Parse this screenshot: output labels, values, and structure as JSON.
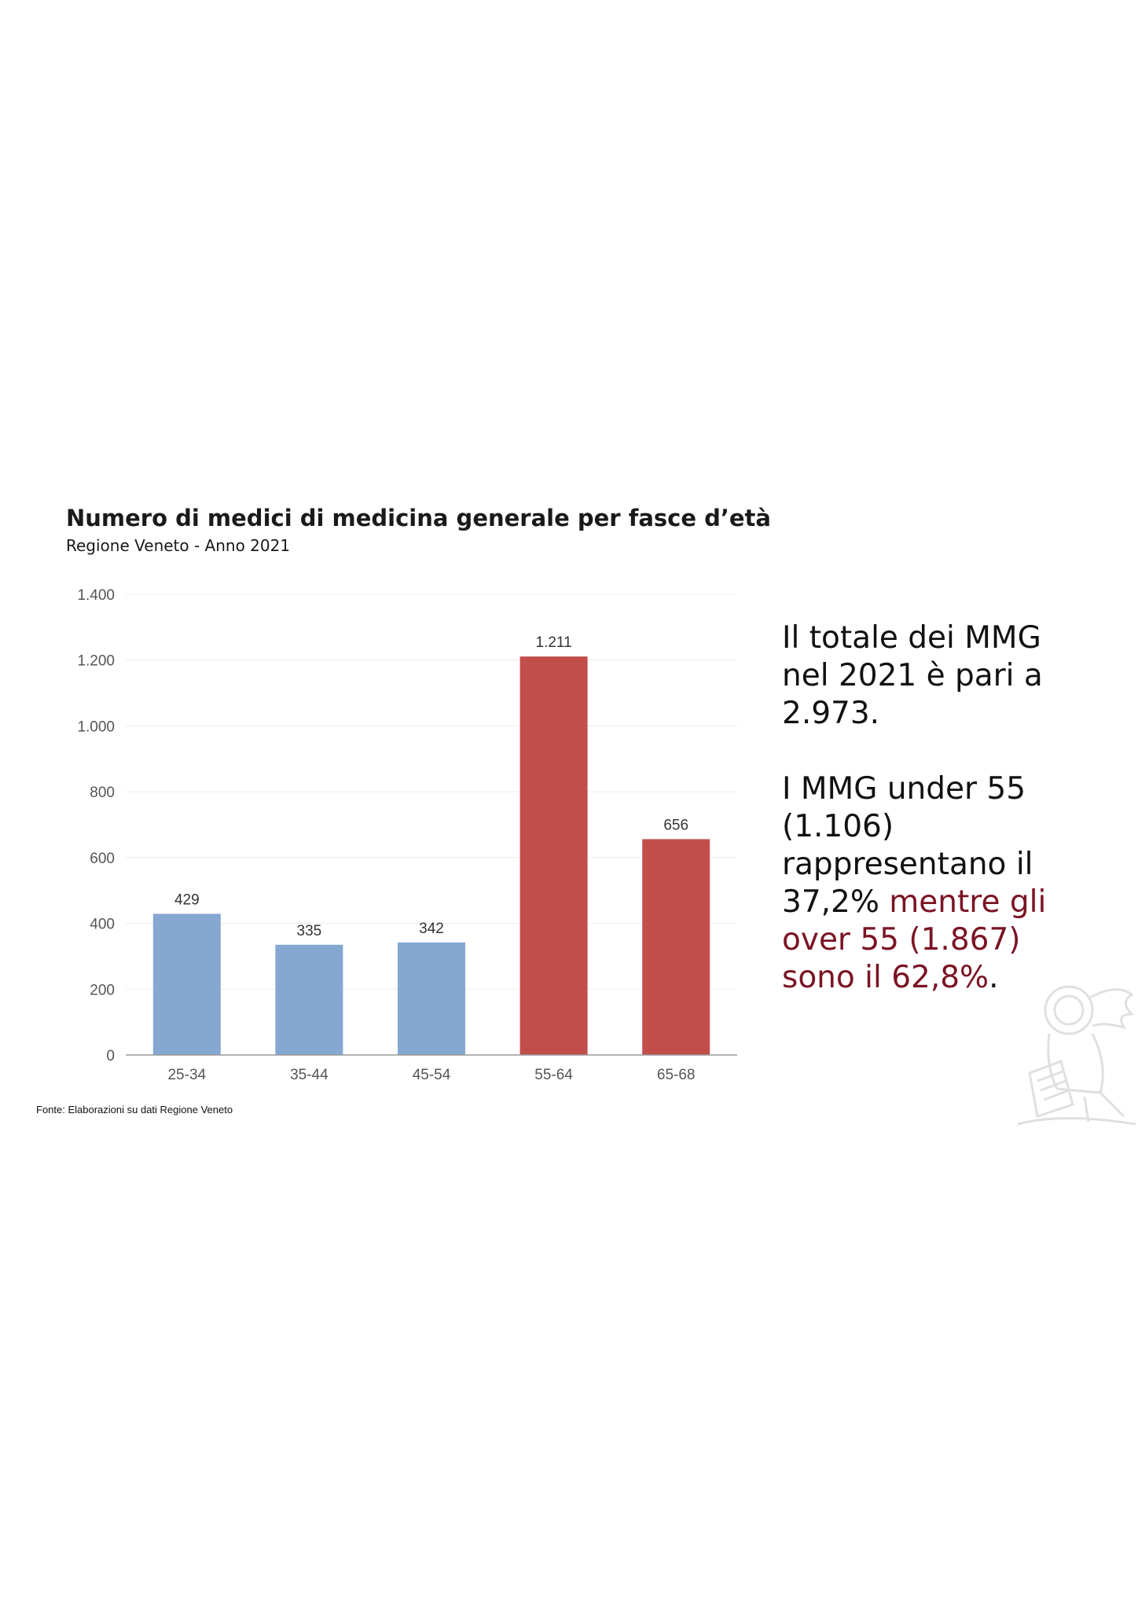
{
  "chart_data": {
    "type": "bar",
    "title": "Numero di medici di medicina generale per fasce d’età",
    "subtitle": "Regione Veneto - Anno 2021",
    "categories": [
      "25-34",
      "35-44",
      "45-54",
      "55-64",
      "65-68"
    ],
    "values": [
      429,
      335,
      342,
      1211,
      656
    ],
    "value_labels": [
      "429",
      "335",
      "342",
      "1.211",
      "656"
    ],
    "bar_colors": [
      "#85a7d2",
      "#85a7d2",
      "#85a7d2",
      "#c24e4c",
      "#c24e4c"
    ],
    "ylim": [
      0,
      1400
    ],
    "y_ticks": [
      0,
      200,
      400,
      600,
      800,
      1000,
      1200,
      1400
    ],
    "y_tick_labels": [
      "0",
      "200",
      "400",
      "600",
      "800",
      "1.000",
      "1.200",
      "1.400"
    ],
    "grid": true,
    "legend": "none"
  },
  "source_note": "Fonte: Elaborazioni su dati Regione Veneto",
  "summary": {
    "line1": "Il totale dei MMG nel 2021 è pari a 2.973.",
    "line2_plain": "I MMG under 55 (1.106) rappresentano il 37,2%",
    "line2_accent": " mentre gli over 55 (1.867) sono il 62,8%",
    "line2_end": "."
  },
  "colors": {
    "accent": "#7b1424",
    "under55_bars": "#85a7d2",
    "over55_bars": "#c24e4c",
    "watermark": "#e2e2e2"
  },
  "watermark_icon": "winged-lion-of-st-mark-icon"
}
